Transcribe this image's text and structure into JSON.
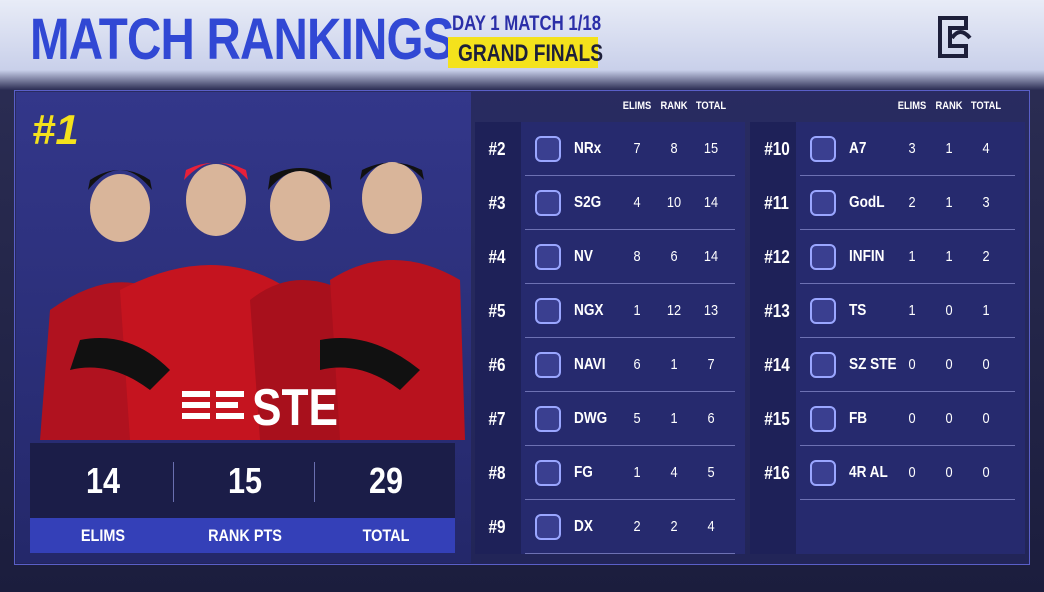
{
  "header": {
    "title": "MATCH RANKINGS",
    "match": "DAY 1 MATCH 1/18",
    "stage": "GRAND FINALS"
  },
  "winner": {
    "rank": "#1",
    "team": "STE",
    "stats": [
      {
        "value": 14,
        "label": "ELIMS"
      },
      {
        "value": 15,
        "label": "RANK PTS"
      },
      {
        "value": 29,
        "label": "TOTAL"
      }
    ]
  },
  "tables": [
    {
      "columns": [
        "ELIMS",
        "RANK",
        "TOTAL"
      ],
      "rows": [
        {
          "rank": "#2",
          "team": "NRx",
          "elims": 7,
          "rank_pts": 8,
          "total": 15
        },
        {
          "rank": "#3",
          "team": "S2G",
          "elims": 4,
          "rank_pts": 10,
          "total": 14
        },
        {
          "rank": "#4",
          "team": "NV",
          "elims": 8,
          "rank_pts": 6,
          "total": 14
        },
        {
          "rank": "#5",
          "team": "NGX",
          "elims": 1,
          "rank_pts": 12,
          "total": 13
        },
        {
          "rank": "#6",
          "team": "NAVI",
          "elims": 6,
          "rank_pts": 1,
          "total": 7
        },
        {
          "rank": "#7",
          "team": "DWG",
          "elims": 5,
          "rank_pts": 1,
          "total": 6
        },
        {
          "rank": "#8",
          "team": "FG",
          "elims": 1,
          "rank_pts": 4,
          "total": 5
        },
        {
          "rank": "#9",
          "team": "DX",
          "elims": 2,
          "rank_pts": 2,
          "total": 4
        }
      ]
    },
    {
      "columns": [
        "ELIMS",
        "RANK",
        "TOTAL"
      ],
      "rows": [
        {
          "rank": "#10",
          "team": "A7",
          "elims": 3,
          "rank_pts": 1,
          "total": 4
        },
        {
          "rank": "#11",
          "team": "GodL",
          "elims": 2,
          "rank_pts": 1,
          "total": 3
        },
        {
          "rank": "#12",
          "team": "INFIN",
          "elims": 1,
          "rank_pts": 1,
          "total": 2
        },
        {
          "rank": "#13",
          "team": "TS",
          "elims": 1,
          "rank_pts": 0,
          "total": 1
        },
        {
          "rank": "#14",
          "team": "SZ STE",
          "elims": 0,
          "rank_pts": 0,
          "total": 0
        },
        {
          "rank": "#15",
          "team": "FB",
          "elims": 0,
          "rank_pts": 0,
          "total": 0
        },
        {
          "rank": "#16",
          "team": "4R AL",
          "elims": 0,
          "rank_pts": 0,
          "total": 0
        }
      ]
    }
  ]
}
